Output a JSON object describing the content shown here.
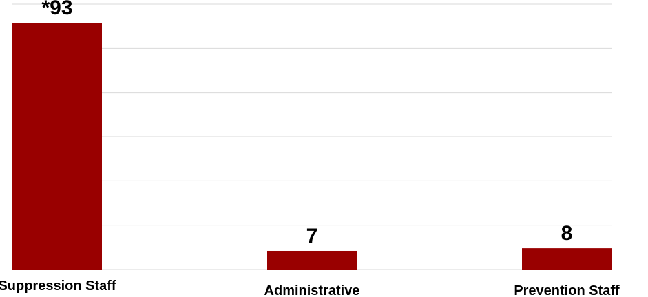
{
  "chart_data": {
    "type": "bar",
    "categories": [
      "Suppression Staff",
      "Administrative",
      "Prevention Staff"
    ],
    "values": [
      93,
      7,
      8
    ],
    "data_labels": [
      "*93",
      "7",
      "8"
    ],
    "ylim": [
      0,
      100
    ],
    "grid": true,
    "legend": "none",
    "bar_color": "#990000",
    "title": "",
    "xlabel": "",
    "ylabel": ""
  }
}
